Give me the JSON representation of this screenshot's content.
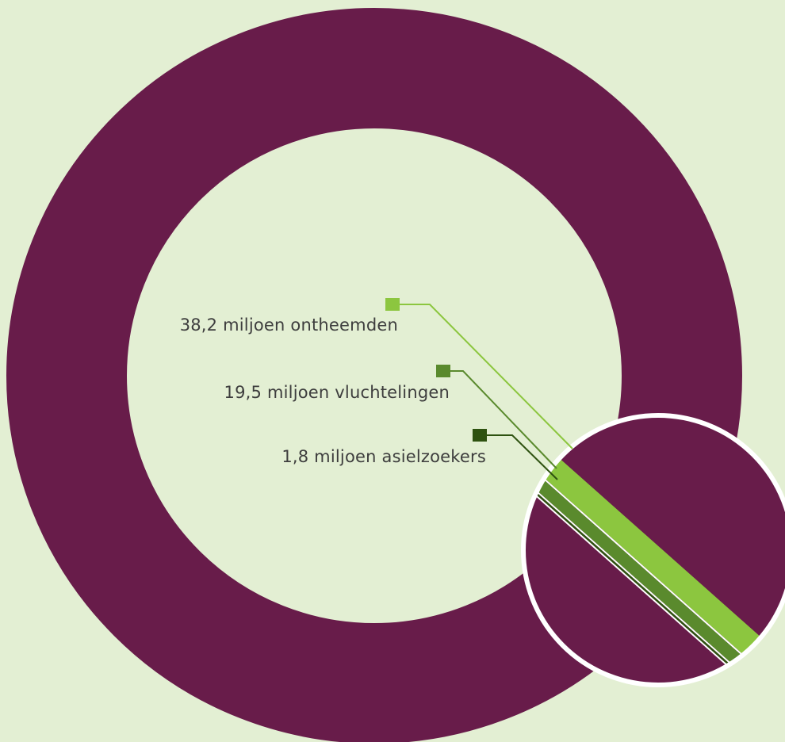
{
  "colors": {
    "background": "#e3efd3",
    "donut": "#681c4a",
    "displaced": "#8cc63f",
    "refugees": "#5a8a2d",
    "asylum": "#2e5210",
    "inset_border": "#ffffff"
  },
  "chart_data": {
    "type": "pie",
    "title": "",
    "series": [
      {
        "name": "38,2 miljoen ontheemden",
        "value": 38.2,
        "unit": "miljoen",
        "color": "#8cc63f"
      },
      {
        "name": "19,5 miljoen vluchtelingen",
        "value": 19.5,
        "unit": "miljoen",
        "color": "#5a8a2d"
      },
      {
        "name": "1,8 miljoen asielzoekers",
        "value": 1.8,
        "unit": "miljoen",
        "color": "#2e5210"
      }
    ],
    "legend": "left-of-callouts"
  }
}
